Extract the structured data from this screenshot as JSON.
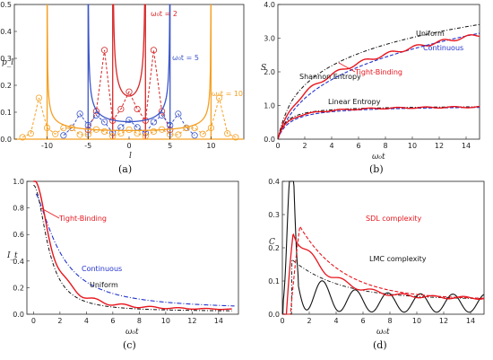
{
  "chart_data": [
    {
      "id": "a",
      "type": "line",
      "caption": "(a)",
      "xlabel": "l",
      "ylabel": "p_l",
      "xlim": [
        -14,
        14
      ],
      "ylim": [
        0,
        0.5
      ],
      "xticks": [
        -10,
        -5,
        0,
        5,
        10
      ],
      "yticks": [
        0.0,
        0.1,
        0.2,
        0.3,
        0.4,
        0.5
      ],
      "annotations": [
        "ω₀t = 2",
        "ω₀t = 5",
        "ω₀t = 10"
      ],
      "colors": {
        "t2": "#d62728",
        "t5": "#3b55c8",
        "t10": "#f5a023"
      },
      "series": [
        {
          "label_index": 0,
          "color": "t2",
          "edge": 2,
          "min_y": 0.16,
          "style": "solid"
        },
        {
          "label_index": 1,
          "color": "t5",
          "edge": 5,
          "min_y": 0.065,
          "style": "solid"
        },
        {
          "label_index": 2,
          "color": "t10",
          "edge": 10,
          "min_y": 0.032,
          "style": "solid"
        }
      ]
    },
    {
      "id": "b",
      "type": "line",
      "caption": "(b)",
      "xlabel": "ω₀t",
      "ylabel": "S",
      "xlim": [
        0,
        15
      ],
      "ylim": [
        0,
        4
      ],
      "xticks": [
        0,
        2,
        4,
        6,
        8,
        10,
        12,
        14
      ],
      "yticks": [
        0.0,
        1.0,
        2.0,
        3.0,
        4.0
      ],
      "annotations": [
        "Shannon Entropy",
        "Uniform",
        "Tight-Binding",
        "Continuous",
        "Linear Entropy"
      ],
      "colors": {
        "tight": "#e8141c",
        "cont": "#2233cc",
        "unif": "#111111"
      }
    },
    {
      "id": "c",
      "type": "line",
      "caption": "(c)",
      "xlabel": "ω₀t",
      "ylabel": "I_t",
      "xlim": [
        -0.5,
        15.5
      ],
      "ylim": [
        0,
        1.0
      ],
      "xticks": [
        0,
        2,
        4,
        6,
        8,
        10,
        12,
        14
      ],
      "yticks": [
        0.0,
        0.2,
        0.4,
        0.6,
        0.8,
        1.0
      ],
      "annotations": [
        "Tight-Binding",
        "Continuous",
        "Uniform"
      ],
      "colors": {
        "tight": "#e8141c",
        "cont": "#2233cc",
        "unif": "#111111"
      }
    },
    {
      "id": "d",
      "type": "line",
      "caption": "(d)",
      "xlabel": "ω₀t",
      "ylabel": "C",
      "xlim": [
        0,
        15
      ],
      "ylim": [
        0,
        0.4
      ],
      "xticks": [
        0,
        2,
        4,
        6,
        8,
        10,
        12,
        14
      ],
      "yticks": [
        0.0,
        0.1,
        0.2,
        0.3,
        0.4
      ],
      "annotations": [
        "SDL complexity",
        "LMC complexity"
      ],
      "colors": {
        "sdl": "#e8141c",
        "lmc": "#111111"
      }
    }
  ]
}
